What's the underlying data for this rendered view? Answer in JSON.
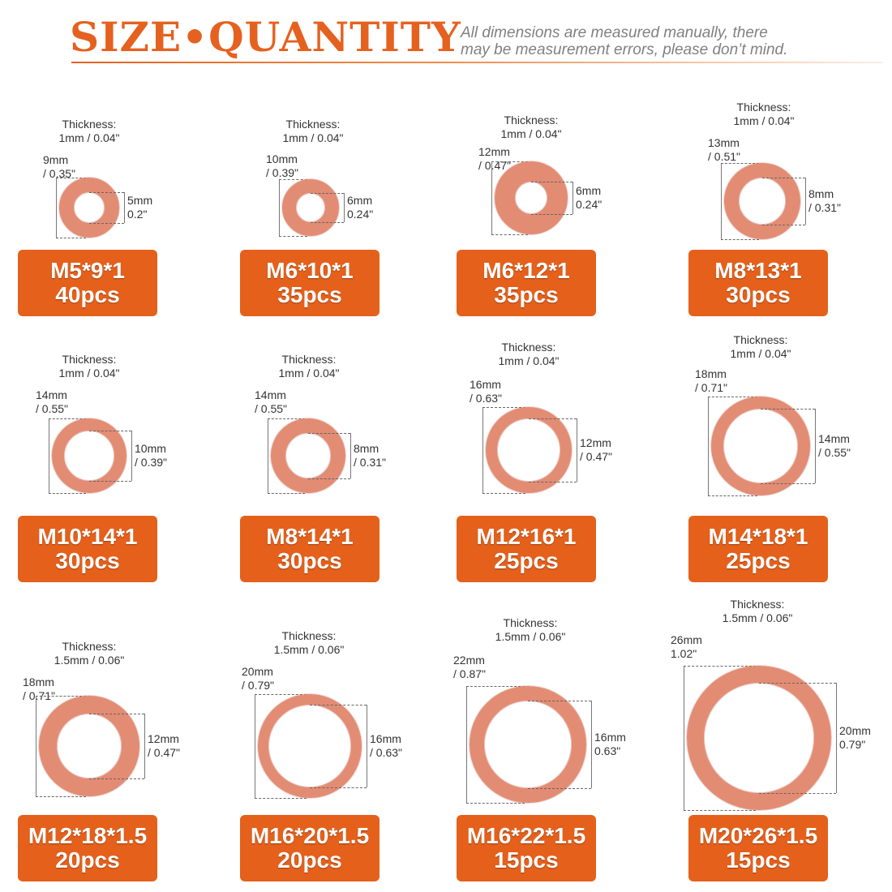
{
  "header": {
    "title": "SIZE•QUANTITY",
    "note_line1": "All dimensions are measured manually, there",
    "note_line2": "may be measurement errors, please don’t mind."
  },
  "colors": {
    "accent": "#e5601b",
    "copper": "#e38c74"
  },
  "washers": [
    {
      "thickness_line1": "Thickness:",
      "thickness_line2": "1mm / 0.04\"",
      "outer_line1": "9mm",
      "outer_line2": "/ 0.35\"",
      "inner_line1": "5mm",
      "inner_line2": "0.2\"",
      "size": "M5*9*1",
      "qty": "40pcs"
    },
    {
      "thickness_line1": "Thickness:",
      "thickness_line2": "1mm / 0.04\"",
      "outer_line1": "10mm",
      "outer_line2": "/ 0.39\"",
      "inner_line1": "6mm",
      "inner_line2": "0.24\"",
      "size": "M6*10*1",
      "qty": "35pcs"
    },
    {
      "thickness_line1": "Thickness:",
      "thickness_line2": "1mm / 0.04\"",
      "outer_line1": "12mm",
      "outer_line2": "/ 0.47\"",
      "inner_line1": "6mm",
      "inner_line2": "0.24\"",
      "size": "M6*12*1",
      "qty": "35pcs"
    },
    {
      "thickness_line1": "Thickness:",
      "thickness_line2": "1mm / 0.04\"",
      "outer_line1": "13mm",
      "outer_line2": "/ 0.51\"",
      "inner_line1": "8mm",
      "inner_line2": "/ 0.31\"",
      "size": "M8*13*1",
      "qty": "30pcs"
    },
    {
      "thickness_line1": "Thickness:",
      "thickness_line2": "1mm / 0.04\"",
      "outer_line1": "14mm",
      "outer_line2": "/ 0.55\"",
      "inner_line1": "10mm",
      "inner_line2": "/ 0.39\"",
      "size": "M10*14*1",
      "qty": "30pcs"
    },
    {
      "thickness_line1": "Thickness:",
      "thickness_line2": "1mm / 0.04\"",
      "outer_line1": "14mm",
      "outer_line2": "/ 0.55\"",
      "inner_line1": "8mm",
      "inner_line2": "/ 0.31\"",
      "size": "M8*14*1",
      "qty": "30pcs"
    },
    {
      "thickness_line1": "Thickness:",
      "thickness_line2": "1mm / 0.04\"",
      "outer_line1": "16mm",
      "outer_line2": "/ 0.63\"",
      "inner_line1": "12mm",
      "inner_line2": "/ 0.47\"",
      "size": "M12*16*1",
      "qty": "25pcs"
    },
    {
      "thickness_line1": "Thickness:",
      "thickness_line2": "1mm / 0.04\"",
      "outer_line1": "18mm",
      "outer_line2": "/ 0.71\"",
      "inner_line1": "14mm",
      "inner_line2": "/ 0.55\"",
      "size": "M14*18*1",
      "qty": "25pcs"
    },
    {
      "thickness_line1": "Thickness:",
      "thickness_line2": "1.5mm / 0.06\"",
      "outer_line1": "18mm",
      "outer_line2": "/ 0.71\"",
      "inner_line1": "12mm",
      "inner_line2": "/ 0.47\"",
      "size": "M12*18*1.5",
      "qty": "20pcs"
    },
    {
      "thickness_line1": "Thickness:",
      "thickness_line2": "1.5mm / 0.06\"",
      "outer_line1": "20mm",
      "outer_line2": "/ 0.79\"",
      "inner_line1": "16mm",
      "inner_line2": "/ 0.63\"",
      "size": "M16*20*1.5",
      "qty": "20pcs"
    },
    {
      "thickness_line1": "Thickness:",
      "thickness_line2": "1.5mm / 0.06\"",
      "outer_line1": "22mm",
      "outer_line2": "/ 0.87\"",
      "inner_line1": "16mm",
      "inner_line2": "0.63\"",
      "size": "M16*22*1.5",
      "qty": "15pcs"
    },
    {
      "thickness_line1": "Thickness:",
      "thickness_line2": "1.5mm / 0.06\"",
      "outer_line1": "26mm",
      "outer_line2": "1.02\"",
      "inner_line1": "20mm",
      "inner_line2": "0.79\"",
      "size": "M20*26*1.5",
      "qty": "15pcs"
    }
  ]
}
